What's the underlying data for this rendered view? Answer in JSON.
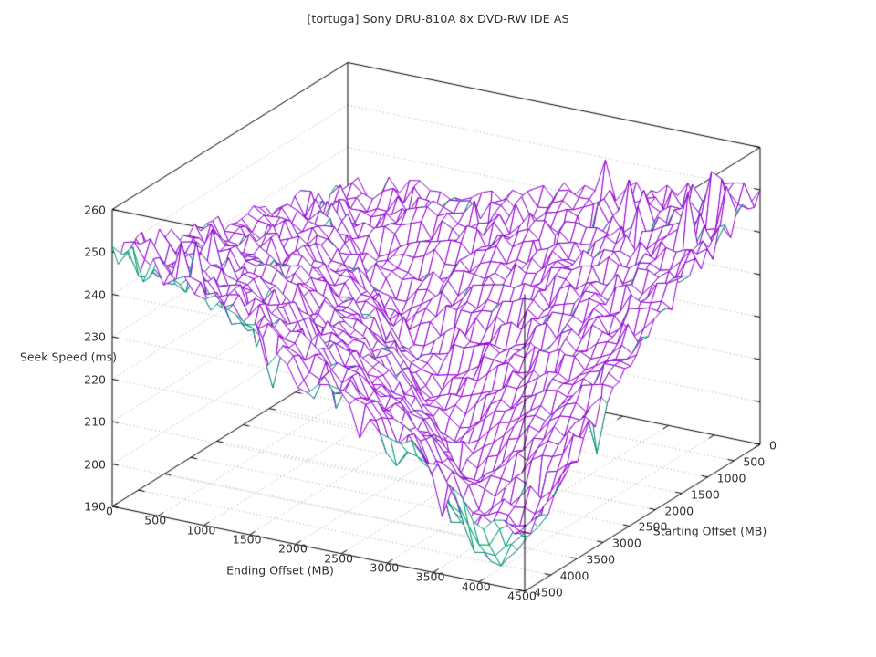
{
  "chart_data": {
    "type": "surface3d-wireframe",
    "title": "[tortuga] Sony DRU-810A 8x DVD-RW IDE AS",
    "xlabel": "Ending Offset (MB)",
    "ylabel": "Starting Offset (MB)",
    "zlabel": "Seek Speed (ms)",
    "x_range": [
      0,
      4500
    ],
    "y_range": [
      0,
      4500
    ],
    "z_range": [
      190,
      260
    ],
    "x_ticks": [
      0,
      500,
      1000,
      1500,
      2000,
      2500,
      3000,
      3500,
      4000,
      4500
    ],
    "y_ticks": [
      0,
      500,
      1000,
      1500,
      2000,
      2500,
      3000,
      3500,
      4000,
      4500
    ],
    "z_ticks": [
      190,
      200,
      210,
      220,
      230,
      240,
      250,
      260
    ],
    "grid": true,
    "legend": "none",
    "colors": {
      "surface_top": "#9400d3",
      "surface_bottom": "#009e73",
      "box": "#000000",
      "grid": "#a8a8a8",
      "text": "#303030",
      "background": "#ffffff"
    },
    "surface_estimate": {
      "units": "ms",
      "x_levels": [
        0,
        450,
        900,
        1350,
        1800,
        2250,
        2700,
        3150,
        3600,
        4050,
        4500
      ],
      "y_levels": [
        0,
        450,
        900,
        1350,
        1800,
        2250,
        2700,
        3150,
        3600,
        4050,
        4500
      ],
      "z_grid": [
        [
          230.0,
          232.0,
          233.0,
          234.5,
          236.5,
          239.0,
          241.1,
          243.0,
          245.1,
          247.4,
          250.0
        ],
        [
          233.0,
          228.4,
          231.5,
          232.8,
          234.2,
          235.8,
          237.6,
          239.7,
          242.0,
          244.5,
          247.2
        ],
        [
          235.0,
          231.5,
          222.2,
          226.9,
          229.2,
          231.3,
          233.5,
          235.8,
          238.4,
          241.1,
          243.9
        ],
        [
          237.3,
          232.8,
          226.9,
          216.4,
          222.7,
          225.8,
          228.6,
          231.4,
          234.2,
          237.2,
          240.2
        ],
        [
          238.2,
          234.2,
          229.2,
          222.7,
          210.9,
          218.9,
          222.7,
          226.1,
          229.5,
          232.8,
          236.1
        ],
        [
          239.5,
          235.8,
          231.3,
          225.8,
          218.9,
          205.9,
          215.3,
          219.9,
          223.9,
          227.8,
          231.5
        ],
        [
          241.1,
          237.6,
          233.5,
          228.6,
          222.7,
          215.3,
          201.4,
          212.0,
          217.4,
          222.0,
          226.3
        ],
        [
          243.0,
          239.7,
          235.8,
          231.4,
          226.1,
          219.9,
          212.0,
          197.4,
          209.3,
          215.3,
          220.5
        ],
        [
          245.1,
          242.0,
          238.4,
          234.2,
          229.5,
          223.9,
          217.4,
          209.3,
          197.0,
          207.0,
          213.7
        ],
        [
          247.4,
          244.5,
          241.1,
          237.2,
          232.8,
          227.8,
          222.0,
          215.3,
          207.0,
          194.0,
          205.4
        ],
        [
          250.0,
          247.2,
          243.9,
          240.2,
          236.1,
          231.5,
          226.3,
          220.5,
          213.7,
          205.4,
          203.0
        ]
      ]
    },
    "render": {
      "mesh_cells": 40,
      "noise_seed": 1234,
      "pits": [
        [
          0.76,
          0.88,
          11,
          0.055
        ],
        [
          0.86,
          0.94,
          10,
          0.05
        ],
        [
          0.66,
          0.97,
          7,
          0.045
        ],
        [
          0.93,
          0.82,
          6,
          0.04
        ],
        [
          0.47,
          0.99,
          6,
          0.045
        ],
        [
          0.03,
          0.86,
          7,
          0.03
        ]
      ]
    }
  }
}
